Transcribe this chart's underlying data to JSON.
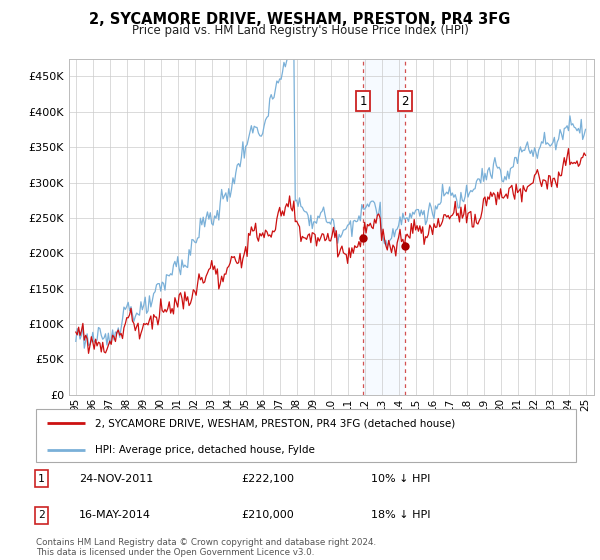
{
  "title": "2, SYCAMORE DRIVE, WESHAM, PRESTON, PR4 3FG",
  "subtitle": "Price paid vs. HM Land Registry's House Price Index (HPI)",
  "legend_line1": "2, SYCAMORE DRIVE, WESHAM, PRESTON, PR4 3FG (detached house)",
  "legend_line2": "HPI: Average price, detached house, Fylde",
  "annotation1_date": "24-NOV-2011",
  "annotation1_price": "£222,100",
  "annotation1_hpi": "10% ↓ HPI",
  "annotation2_date": "16-MAY-2014",
  "annotation2_price": "£210,000",
  "annotation2_hpi": "18% ↓ HPI",
  "footer": "Contains HM Land Registry data © Crown copyright and database right 2024.\nThis data is licensed under the Open Government Licence v3.0.",
  "hpi_color": "#7ab0d8",
  "price_color": "#cc1111",
  "marker_color": "#aa0000",
  "shade_color": "#ddeeff",
  "vline_color": "#cc3333",
  "ylim": [
    0,
    475000
  ],
  "yticks": [
    0,
    50000,
    100000,
    150000,
    200000,
    250000,
    300000,
    350000,
    400000,
    450000
  ]
}
